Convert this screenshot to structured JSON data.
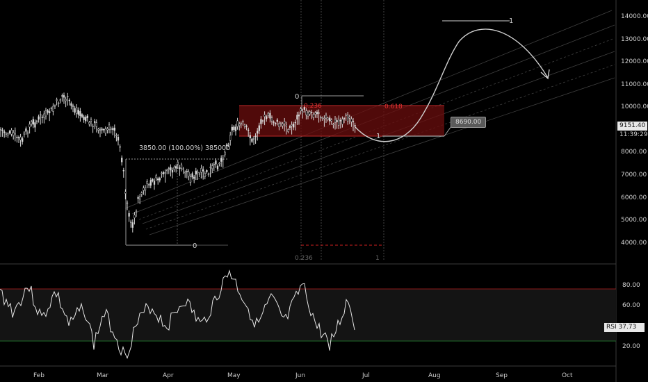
{
  "colors": {
    "background": "#000000",
    "candles": "#d8d8d8",
    "fib_zone": "#7a1010",
    "fib_text": "#e23333",
    "channel": "#4a4a4a",
    "rsi_line": "#e6e6e6",
    "rsi_upper": "#8b1a1a",
    "rsi_lower": "#1f6b2a",
    "annotation": "#bdbdbd"
  },
  "price_axis": {
    "ticks": [
      "14000.00",
      "13000.00",
      "12000.00",
      "11000.00",
      "10000.00",
      "8000.00",
      "7000.00",
      "6000.00",
      "5000.00",
      "4000.00"
    ],
    "current_price": "9151.40",
    "countdown": "11:39:29"
  },
  "rsi_axis": {
    "ticks": [
      "80.00",
      "60.00",
      "20.00"
    ],
    "label": "RSI",
    "value": "37.73"
  },
  "time_axis": {
    "ticks": [
      "Feb",
      "Mar",
      "Apr",
      "May",
      "Jun",
      "Jul",
      "Aug",
      "Sep",
      "Oct"
    ]
  },
  "annotations": {
    "measure_label": "3850.00 (100.00%) 385000",
    "zero_left": "0",
    "zero_top": "0",
    "fib_236": "0.236",
    "fib_618": "0.618",
    "one_mid": "1",
    "one_top": "1",
    "target_price": "8690.00",
    "time_fib_236": "0.236",
    "time_fib_1": "1"
  },
  "chart_data": {
    "type": "line",
    "price_range": [
      3500,
      14500
    ],
    "rsi_range": [
      0,
      100
    ],
    "rsi_levels": [
      70,
      30
    ]
  }
}
